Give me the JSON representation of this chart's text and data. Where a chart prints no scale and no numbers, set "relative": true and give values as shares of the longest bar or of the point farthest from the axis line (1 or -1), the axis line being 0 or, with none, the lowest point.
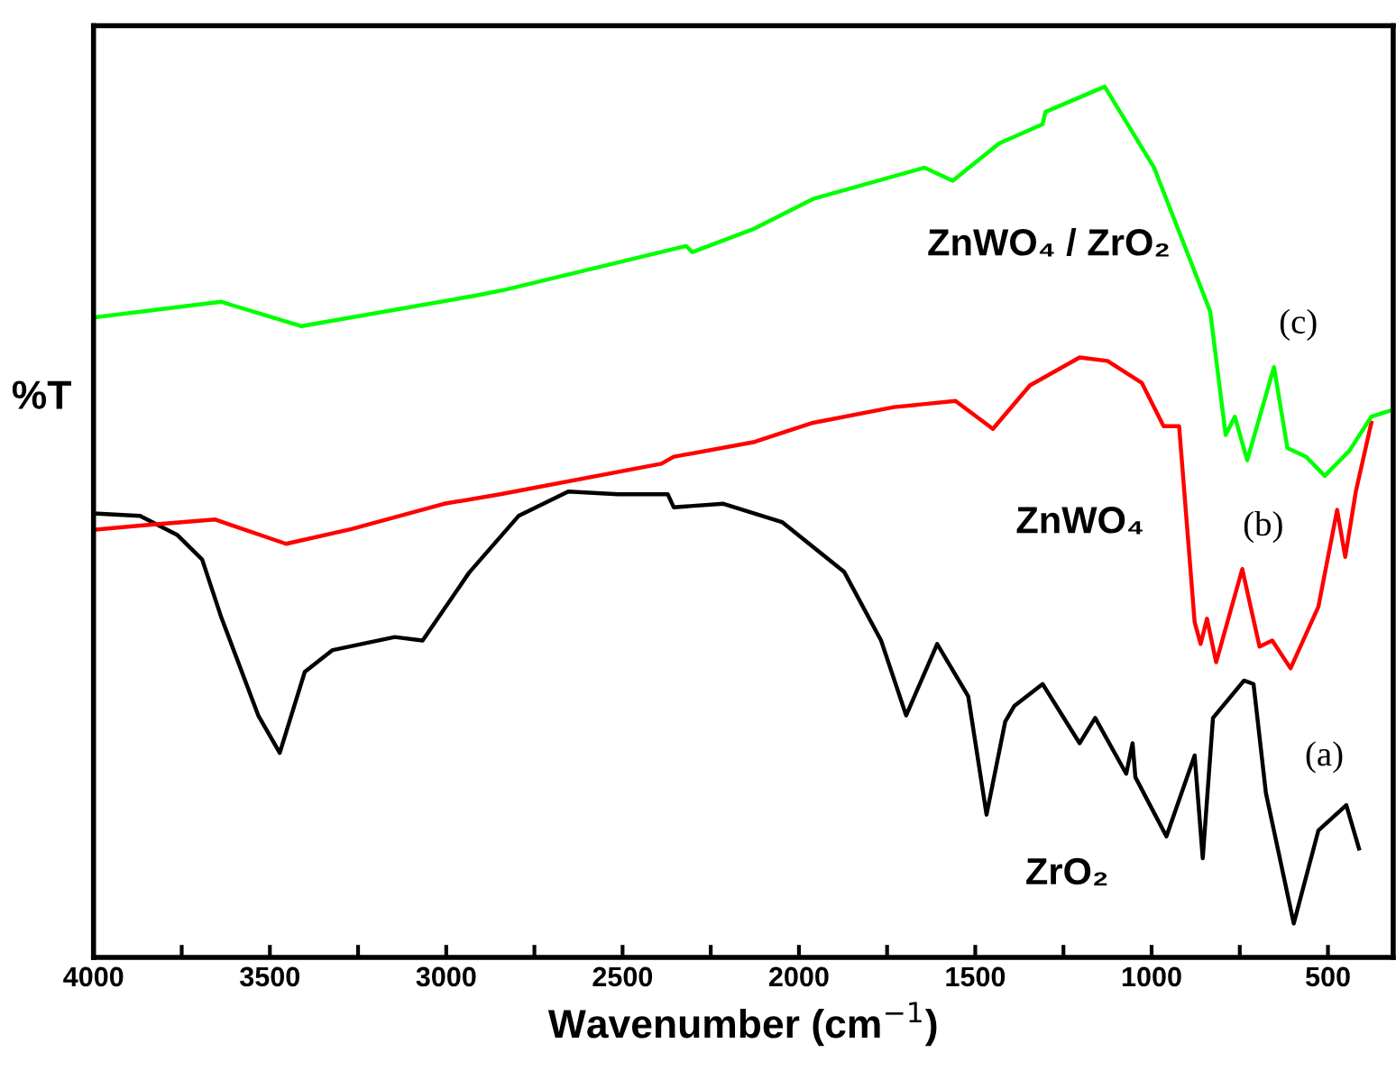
{
  "chart_data": {
    "type": "line",
    "relative": true,
    "xlabel": "Wavenumber (cm$^{−1}$)",
    "ylabel": "%T",
    "xlim": [
      4000,
      315
    ],
    "xticks": [
      4000,
      {
        "value": 3750,
        "label": null
      },
      3500,
      {
        "value": 3250,
        "label": null
      },
      3000,
      {
        "value": 2750,
        "label": null
      },
      2500,
      {
        "value": 2250,
        "label": null
      },
      2000,
      {
        "value": 1750,
        "label": null
      },
      1500,
      {
        "value": 1250,
        "label": null
      },
      1000,
      {
        "value": 750,
        "label": null
      },
      500
    ],
    "annotations": [
      "(a)",
      "(b)",
      "(c)"
    ],
    "legend": false,
    "grid": false,
    "marker": "none",
    "line_style": "solid",
    "series": [
      {
        "name": "ZrO₂",
        "color": "#000000",
        "x": [
          4000,
          3868,
          3762,
          3692,
          3639,
          3533,
          3472,
          3401,
          3322,
          3146,
          3067,
          2935,
          2795,
          2654,
          2513,
          2372,
          2355,
          2214,
          2048,
          1872,
          1767,
          1696,
          1608,
          1520,
          1468,
          1415,
          1389,
          1309,
          1204,
          1160,
          1072,
          1054,
          1046,
          958,
          878,
          855,
          826,
          738,
          711,
          676,
          597,
          527,
          448,
          412
        ],
        "values": [
          0.51,
          0.507,
          0.485,
          0.457,
          0.392,
          0.278,
          0.235,
          0.328,
          0.353,
          0.368,
          0.364,
          0.442,
          0.507,
          0.535,
          0.532,
          0.532,
          0.517,
          0.521,
          0.5,
          0.443,
          0.364,
          0.278,
          0.36,
          0.3,
          0.164,
          0.271,
          0.289,
          0.314,
          0.246,
          0.275,
          0.211,
          0.246,
          0.207,
          0.139,
          0.232,
          0.114,
          0.275,
          0.318,
          0.314,
          0.189,
          0.039,
          0.146,
          0.175,
          0.125
        ]
      },
      {
        "name": "ZnWO₄",
        "color": "#ff0000",
        "x": [
          4000,
          3868,
          3656,
          3454,
          3269,
          3006,
          2847,
          2390,
          2355,
          2126,
          1960,
          1731,
          1556,
          1450,
          1345,
          1204,
          1125,
          1028,
          966,
          922,
          878,
          861,
          843,
          817,
          743,
          694,
          658,
          606,
          527,
          474,
          451,
          421,
          377
        ],
        "values": [
          0.491,
          0.496,
          0.503,
          0.475,
          0.492,
          0.521,
          0.532,
          0.567,
          0.575,
          0.592,
          0.614,
          0.632,
          0.639,
          0.607,
          0.657,
          0.689,
          0.685,
          0.66,
          0.61,
          0.61,
          0.385,
          0.36,
          0.389,
          0.339,
          0.446,
          0.357,
          0.364,
          0.332,
          0.403,
          0.514,
          0.46,
          0.535,
          0.614
        ]
      },
      {
        "name": "ZnWO₄ / ZrO₂",
        "color": "#00ff00",
        "x": [
          4000,
          3639,
          3410,
          2918,
          2830,
          2320,
          2302,
          2126,
          1960,
          1644,
          1564,
          1432,
          1309,
          1301,
          1133,
          993,
          834,
          790,
          764,
          729,
          653,
          615,
          562,
          509,
          439,
          377,
          324
        ],
        "values": [
          0.735,
          0.753,
          0.725,
          0.76,
          0.767,
          0.817,
          0.81,
          0.837,
          0.871,
          0.907,
          0.892,
          0.935,
          0.957,
          0.971,
          1,
          0.907,
          0.742,
          0.6,
          0.621,
          0.571,
          0.678,
          0.585,
          0.575,
          0.553,
          0.582,
          0.621,
          0.628
        ]
      }
    ]
  }
}
